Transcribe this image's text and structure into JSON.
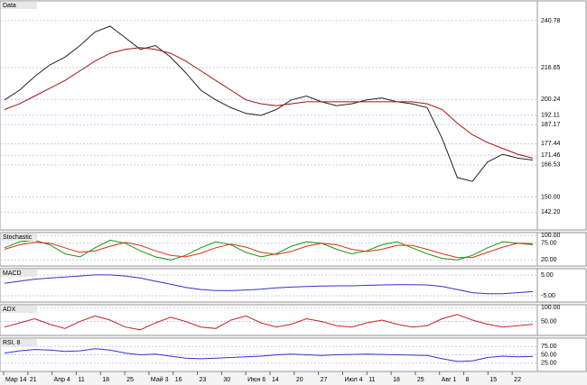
{
  "chart_data": [
    {
      "type": "line",
      "title": "Data",
      "ylim": [
        133,
        251
      ],
      "yticks": [
        {
          "value": 240.78,
          "label": "240.78"
        },
        {
          "value": 216.65,
          "label": "216.65"
        },
        {
          "value": 200.24,
          "label": "200.24"
        },
        {
          "value": 192.11,
          "label": "192.11"
        },
        {
          "value": 187.17,
          "label": "187.17"
        },
        {
          "value": 177.44,
          "label": "177.44"
        },
        {
          "value": 171.46,
          "label": "171.46"
        },
        {
          "value": 166.53,
          "label": "166.53"
        },
        {
          "value": 150,
          "label": "150.00"
        },
        {
          "value": 142.2,
          "label": "142.20"
        }
      ],
      "series": [
        {
          "color": "#222222",
          "values": [
            200,
            205,
            212,
            218,
            222,
            228,
            235,
            238,
            232,
            226,
            228,
            222,
            214,
            205,
            200,
            196,
            193,
            192,
            195,
            200,
            202,
            199,
            197,
            198,
            200,
            201,
            199,
            198,
            196,
            180,
            160,
            158,
            168,
            172,
            170,
            169
          ]
        },
        {
          "color": "#aa1111",
          "values": [
            195,
            198,
            202,
            206,
            210,
            215,
            220,
            224,
            226,
            227,
            226,
            224,
            220,
            215,
            210,
            205,
            200,
            198,
            197,
            198,
            199,
            199,
            199,
            199,
            199,
            199,
            199,
            199,
            198,
            195,
            188,
            182,
            178,
            175,
            172,
            170
          ]
        }
      ]
    },
    {
      "type": "line",
      "title": "Stochastic",
      "ylim": [
        0,
        110
      ],
      "yticks": [
        {
          "value": 100,
          "label": "100.00"
        },
        {
          "value": 75,
          "label": "75.00"
        },
        {
          "value": 20,
          "label": "20.00"
        }
      ],
      "series": [
        {
          "color": "#119911",
          "values": [
            60,
            80,
            85,
            70,
            40,
            30,
            60,
            85,
            75,
            50,
            30,
            20,
            35,
            60,
            80,
            70,
            45,
            30,
            40,
            65,
            80,
            75,
            55,
            40,
            50,
            70,
            80,
            60,
            40,
            25,
            20,
            35,
            60,
            80,
            75,
            70
          ]
        },
        {
          "color": "#dd3311",
          "values": [
            55,
            70,
            78,
            75,
            60,
            45,
            50,
            65,
            78,
            68,
            50,
            35,
            30,
            42,
            60,
            72,
            62,
            45,
            38,
            48,
            65,
            75,
            70,
            55,
            48,
            55,
            68,
            68,
            55,
            40,
            28,
            28,
            45,
            62,
            75,
            74
          ]
        }
      ]
    },
    {
      "type": "line",
      "title": "MACD",
      "ylim": [
        -8,
        8
      ],
      "yticks": [
        {
          "value": 5,
          "label": "5.00"
        },
        {
          "value": -5,
          "label": "-5.00"
        }
      ],
      "series": [
        {
          "color": "#3333cc",
          "values": [
            1,
            2,
            3,
            3.5,
            4,
            4.5,
            5,
            5,
            4.5,
            3.5,
            2,
            0.5,
            -1,
            -2,
            -2.5,
            -2.5,
            -2.2,
            -1.8,
            -1.2,
            -0.8,
            -0.5,
            -0.3,
            -0.2,
            -0.2,
            0,
            0.2,
            0.3,
            0.3,
            0.2,
            -0.5,
            -2,
            -3.5,
            -4,
            -4,
            -3.5,
            -3
          ]
        }
      ]
    },
    {
      "type": "line",
      "title": "ADX",
      "ylim": [
        0,
        110
      ],
      "yticks": [
        {
          "value": 100,
          "label": "100.00"
        },
        {
          "value": 50,
          "label": "50.00"
        }
      ],
      "series": [
        {
          "color": "#cc2222",
          "values": [
            30,
            45,
            60,
            40,
            25,
            50,
            70,
            55,
            30,
            20,
            45,
            65,
            50,
            30,
            25,
            55,
            70,
            45,
            30,
            40,
            60,
            50,
            35,
            30,
            45,
            55,
            40,
            30,
            35,
            60,
            75,
            55,
            40,
            30,
            35,
            40
          ]
        }
      ]
    },
    {
      "type": "line",
      "title": "RSI, 8",
      "ylim": [
        0,
        100
      ],
      "yticks": [
        {
          "value": 75,
          "label": "75.00"
        },
        {
          "value": 50,
          "label": "50.00"
        },
        {
          "value": 25,
          "label": "25.00"
        }
      ],
      "series": [
        {
          "color": "#3333cc",
          "values": [
            55,
            62,
            66,
            64,
            60,
            62,
            68,
            64,
            55,
            50,
            52,
            46,
            40,
            38,
            40,
            42,
            44,
            46,
            50,
            52,
            50,
            48,
            50,
            51,
            52,
            51,
            50,
            49,
            48,
            38,
            30,
            32,
            42,
            46,
            44,
            45
          ]
        }
      ]
    }
  ],
  "time_axis": {
    "labels": [
      "Мар 14",
      "21",
      "Апр 4",
      "11",
      "18",
      "25",
      "Май 3",
      "16",
      "23",
      "30",
      "Июн 6",
      "14",
      "20",
      "27",
      "Июл 4",
      "11",
      "18",
      "25",
      "Авг 1",
      "8",
      "15",
      "22"
    ]
  }
}
